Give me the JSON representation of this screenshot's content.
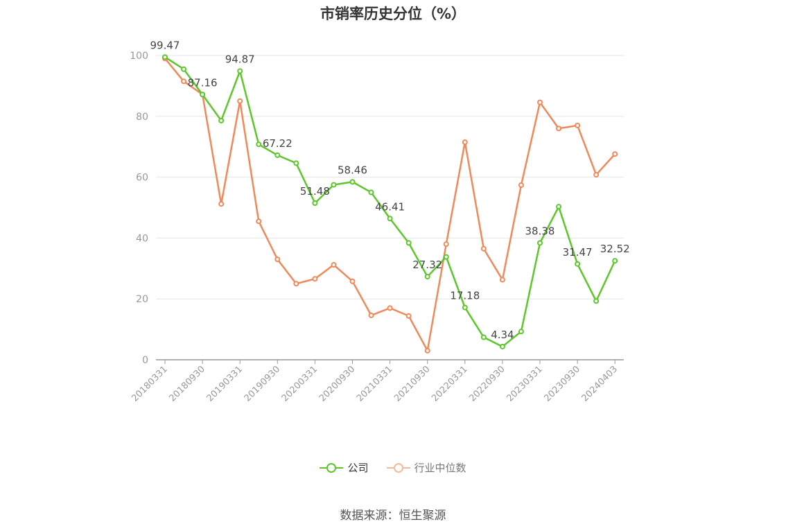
{
  "chart_data": {
    "type": "line",
    "title": "市销率历史分位（%）",
    "source": "数据来源：恒生聚源",
    "ylim": [
      0,
      100
    ],
    "yticks": [
      0,
      20,
      40,
      60,
      80,
      100
    ],
    "grid": true,
    "legend_position": "bottom-center",
    "x": [
      "20180331",
      "20180630",
      "20180930",
      "20181231",
      "20190331",
      "20190630",
      "20190930",
      "20191231",
      "20200331",
      "20200630",
      "20200930",
      "20201231",
      "20210331",
      "20210630",
      "20210930",
      "20211231",
      "20220331",
      "20220630",
      "20220930",
      "20221231",
      "20230331",
      "20230630",
      "20230930",
      "20231231",
      "20240403"
    ],
    "xtick_labels": [
      "20180331",
      "20180930",
      "20190331",
      "20190930",
      "20200331",
      "20200930",
      "20210331",
      "20210930",
      "20220331",
      "20220930",
      "20230331",
      "20230930",
      "20240403"
    ],
    "series": [
      {
        "name": "公司",
        "color": "#5cc62b",
        "values": [
          99.47,
          95.5,
          87.16,
          78.6,
          94.87,
          70.8,
          67.22,
          64.6,
          51.48,
          57.5,
          58.46,
          55.0,
          46.41,
          38.4,
          27.32,
          33.8,
          17.18,
          7.4,
          4.34,
          9.3,
          38.38,
          50.3,
          31.47,
          19.3,
          32.52
        ],
        "labels": [
          "99.47",
          "",
          "87.16",
          "",
          "94.87",
          "",
          "67.22",
          "",
          "51.48",
          "",
          "58.46",
          "",
          "46.41",
          "",
          "27.32",
          "",
          "17.18",
          "",
          "4.34",
          "",
          "38.38",
          "",
          "31.47",
          "",
          "32.52"
        ]
      },
      {
        "name": "行业中位数",
        "color": "#f0895a",
        "values": [
          99.0,
          91.5,
          87.2,
          51.2,
          85.0,
          45.5,
          33.0,
          25.0,
          26.6,
          31.2,
          25.8,
          14.6,
          17.0,
          14.4,
          3.0,
          38.0,
          71.5,
          36.5,
          26.3,
          57.4,
          84.6,
          76.0,
          77.0,
          60.8,
          67.6
        ],
        "labels": []
      }
    ]
  }
}
